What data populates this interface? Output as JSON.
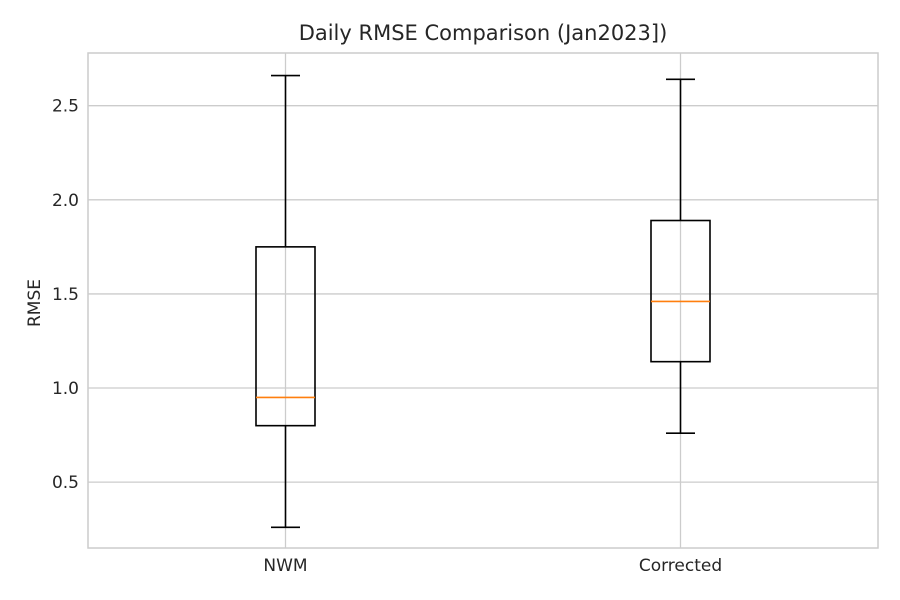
{
  "chart_data": {
    "type": "box",
    "title": "Daily RMSE Comparison (Jan2023])",
    "xlabel": "",
    "ylabel": "RMSE",
    "ylim": [
      0.15,
      2.78
    ],
    "yticks": [
      0.5,
      1.0,
      1.5,
      2.0,
      2.5
    ],
    "ytick_labels": [
      "0.5",
      "1.0",
      "1.5",
      "2.0",
      "2.5"
    ],
    "grid": true,
    "categories": [
      "NWM",
      "Corrected"
    ],
    "boxes": [
      {
        "category": "NWM",
        "whisker_low": 0.26,
        "q1": 0.8,
        "median": 0.95,
        "q3": 1.75,
        "whisker_high": 2.66
      },
      {
        "category": "Corrected",
        "whisker_low": 0.76,
        "q1": 1.14,
        "median": 1.46,
        "q3": 1.89,
        "whisker_high": 2.64
      }
    ],
    "colors": {
      "box_line": "#000000",
      "median": "#ff7f0e",
      "grid": "#cccccc",
      "frame": "#cccccc",
      "text": "#262626"
    }
  }
}
